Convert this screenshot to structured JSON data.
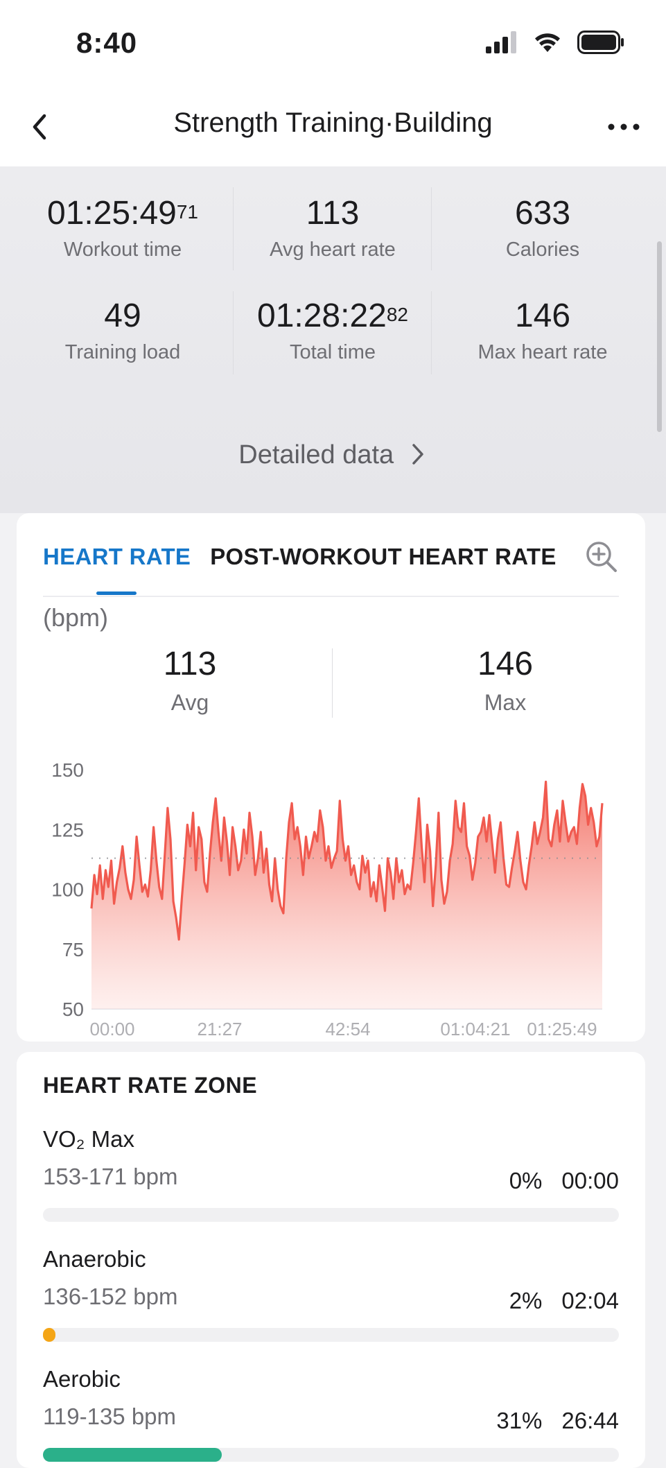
{
  "status_bar": {
    "time": "8:40"
  },
  "header": {
    "title": "Strength Training·Building"
  },
  "summary": {
    "stats": [
      {
        "value": "01:25:49",
        "sup": "71",
        "label": "Workout time"
      },
      {
        "value": "113",
        "sup": "",
        "label": "Avg heart rate"
      },
      {
        "value": "633",
        "sup": "",
        "label": "Calories"
      },
      {
        "value": "49",
        "sup": "",
        "label": "Training load"
      },
      {
        "value": "01:28:22",
        "sup": "82",
        "label": "Total time"
      },
      {
        "value": "146",
        "sup": "",
        "label": "Max heart rate"
      }
    ],
    "detailed_link": "Detailed data"
  },
  "heart_card": {
    "tabs": [
      "HEART RATE",
      "POST-WORKOUT HEART RATE"
    ],
    "active_tab": "HEART RATE",
    "unit": "(bpm)",
    "avg": {
      "value": "113",
      "label": "Avg"
    },
    "max": {
      "value": "146",
      "label": "Max"
    },
    "colors": {
      "accent": "#1677c9",
      "line": "#f05a4f"
    }
  },
  "chart_data": {
    "type": "area",
    "title": "",
    "ylabel": "(bpm)",
    "ylim": [
      50,
      150
    ],
    "yticks": [
      "150",
      "125",
      "100",
      "75",
      "50"
    ],
    "xticks": [
      "00:00",
      "21:27",
      "42:54",
      "01:04:21",
      "01:25:49"
    ],
    "reference_line": 113,
    "series": [
      {
        "values": [
          92,
          106,
          98,
          110,
          96,
          108,
          101,
          112,
          94,
          103,
          109,
          118,
          107,
          100,
          96,
          104,
          122,
          110,
          99,
          102,
          97,
          108,
          126,
          112,
          101,
          96,
          115,
          134,
          121,
          95,
          88,
          79,
          96,
          111,
          127,
          118,
          132,
          108,
          126,
          121,
          103,
          99,
          115,
          128,
          138,
          124,
          112,
          130,
          120,
          106,
          126,
          118,
          108,
          112,
          125,
          115,
          132,
          122,
          106,
          113,
          124,
          107,
          117,
          102,
          95,
          113,
          100,
          93,
          90,
          113,
          128,
          136,
          121,
          126,
          118,
          106,
          122,
          113,
          118,
          124,
          120,
          133,
          126,
          112,
          118,
          109,
          113,
          116,
          137,
          121,
          112,
          118,
          106,
          110,
          103,
          100,
          114,
          107,
          112,
          97,
          103,
          95,
          110,
          101,
          91,
          113,
          107,
          96,
          113,
          103,
          108,
          98,
          102,
          100,
          111,
          124,
          138,
          118,
          103,
          127,
          116,
          93,
          110,
          132,
          104,
          94,
          99,
          112,
          119,
          137,
          126,
          124,
          136,
          118,
          114,
          104,
          111,
          122,
          124,
          130,
          120,
          131,
          119,
          107,
          121,
          128,
          113,
          102,
          101,
          109,
          116,
          124,
          112,
          103,
          100,
          110,
          118,
          128,
          119,
          124,
          130,
          145,
          121,
          118,
          127,
          133,
          120,
          137,
          128,
          120,
          124,
          126,
          119,
          134,
          144,
          139,
          127,
          134,
          128,
          118,
          122,
          136
        ]
      }
    ]
  },
  "zones": {
    "title": "HEART RATE ZONE",
    "items": [
      {
        "name": "VO₂ Max",
        "range": "153-171 bpm",
        "percent": "0%",
        "time": "00:00",
        "fill": 0,
        "color": "#f2a63b"
      },
      {
        "name": "Anaerobic",
        "range": "136-152 bpm",
        "percent": "2%",
        "time": "02:04",
        "fill": 0.02,
        "color": "#f4a516"
      },
      {
        "name": "Aerobic",
        "range": "119-135 bpm",
        "percent": "31%",
        "time": "26:44",
        "fill": 0.31,
        "color": "#2bb08a"
      }
    ]
  }
}
